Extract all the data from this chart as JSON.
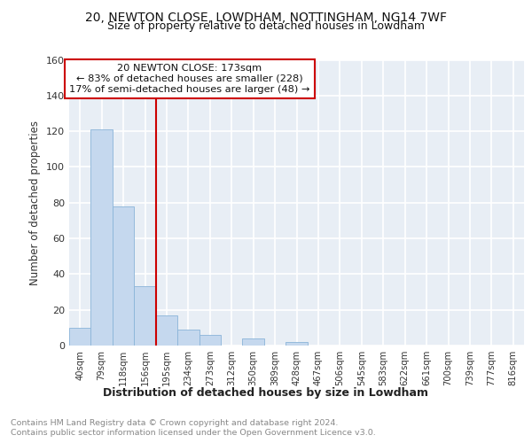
{
  "title_line1": "20, NEWTON CLOSE, LOWDHAM, NOTTINGHAM, NG14 7WF",
  "title_line2": "Size of property relative to detached houses in Lowdham",
  "xlabel": "Distribution of detached houses by size in Lowdham",
  "ylabel": "Number of detached properties",
  "categories": [
    "40sqm",
    "79sqm",
    "118sqm",
    "156sqm",
    "195sqm",
    "234sqm",
    "273sqm",
    "312sqm",
    "350sqm",
    "389sqm",
    "428sqm",
    "467sqm",
    "506sqm",
    "545sqm",
    "583sqm",
    "622sqm",
    "661sqm",
    "700sqm",
    "739sqm",
    "777sqm",
    "816sqm"
  ],
  "values": [
    10,
    121,
    78,
    33,
    17,
    9,
    6,
    0,
    4,
    0,
    2,
    0,
    0,
    0,
    0,
    0,
    0,
    0,
    0,
    0,
    0
  ],
  "bar_color": "#c5d8ee",
  "bar_edge_color": "#8ab4d8",
  "property_bin_index": 3,
  "annotation_line1": "20 NEWTON CLOSE: 173sqm",
  "annotation_line2": "← 83% of detached houses are smaller (228)",
  "annotation_line3": "17% of semi-detached houses are larger (48) →",
  "vline_color": "#cc0000",
  "annotation_box_edgecolor": "#cc0000",
  "footer_line1": "Contains HM Land Registry data © Crown copyright and database right 2024.",
  "footer_line2": "Contains public sector information licensed under the Open Government Licence v3.0.",
  "ylim": [
    0,
    160
  ],
  "yticks": [
    0,
    20,
    40,
    60,
    80,
    100,
    120,
    140,
    160
  ],
  "bg_color": "#e8eef5",
  "grid_color": "#ffffff"
}
